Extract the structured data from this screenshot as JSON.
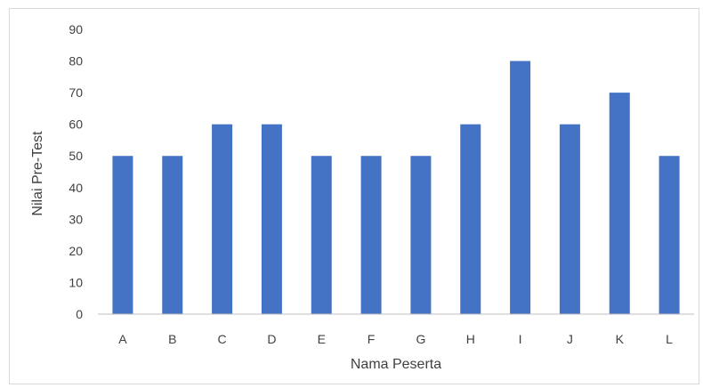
{
  "chart_data": {
    "type": "bar",
    "title": "",
    "xlabel": "Nama Peserta",
    "ylabel": "Nilai Pre-Test",
    "categories": [
      "A",
      "B",
      "C",
      "D",
      "E",
      "F",
      "G",
      "H",
      "I",
      "J",
      "K",
      "L"
    ],
    "values": [
      50,
      50,
      60,
      60,
      50,
      50,
      50,
      60,
      80,
      60,
      70,
      50
    ],
    "ylim": [
      0,
      90
    ],
    "yticks": [
      0,
      10,
      20,
      30,
      40,
      50,
      60,
      70,
      80,
      90
    ],
    "grid": false,
    "legend": "none",
    "bar_color": "#4472c4",
    "axis_color": "#bfbfbf"
  }
}
